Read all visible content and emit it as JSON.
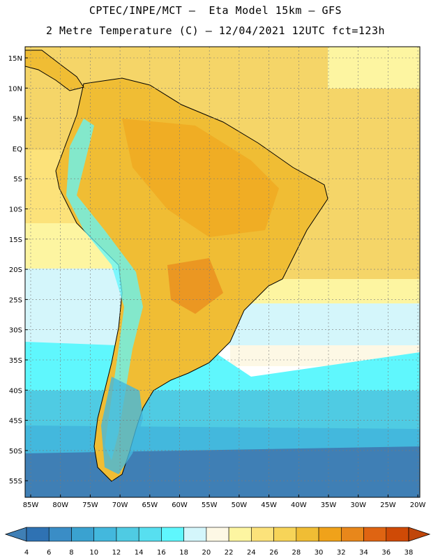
{
  "title_line1": "CPTEC/INPE/MCT –  Eta Model 15km – GFS",
  "title_line2": "2 Metre Temperature (C) – 12/04/2021 12UTC fct=123h",
  "lat_labels": [
    "15N",
    "10N",
    "5N",
    "EQ",
    "5S",
    "10S",
    "15S",
    "20S",
    "25S",
    "30S",
    "35S",
    "40S",
    "45S",
    "50S",
    "55S"
  ],
  "lon_labels": [
    "85W",
    "80W",
    "75W",
    "70W",
    "65W",
    "60W",
    "55W",
    "50W",
    "45W",
    "40W",
    "35W",
    "30W",
    "25W",
    "20W"
  ],
  "colorbar": {
    "values": [
      "4",
      "6",
      "8",
      "10",
      "12",
      "14",
      "16",
      "18",
      "20",
      "22",
      "24",
      "26",
      "28",
      "30",
      "32",
      "34",
      "36",
      "38"
    ],
    "colors": [
      "#3f7fb5",
      "#2f72b3",
      "#3a8dc6",
      "#3aa2d0",
      "#43b8dd",
      "#4fcbe3",
      "#57dff0",
      "#5ff7fd",
      "#d4f6fb",
      "#fdf8e5",
      "#fdf5a1",
      "#fce27a",
      "#f7d458",
      "#f0bd34",
      "#f0a21a",
      "#e8871b",
      "#df6412",
      "#cf4a06",
      "#c0460a"
    ]
  }
}
